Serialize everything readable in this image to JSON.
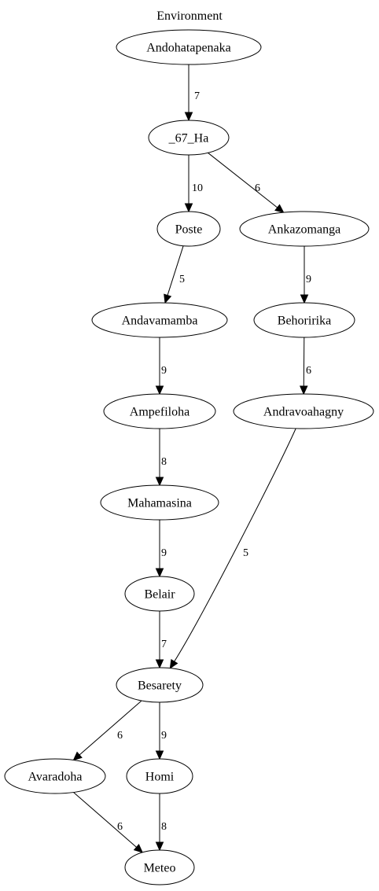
{
  "title": "Environment",
  "nodes": [
    {
      "id": "andohatapenaka",
      "label": "Andohatapenaka"
    },
    {
      "id": "67ha",
      "label": "_67_Ha"
    },
    {
      "id": "poste",
      "label": "Poste"
    },
    {
      "id": "ankazomanga",
      "label": "Ankazomanga"
    },
    {
      "id": "andavamamba",
      "label": "Andavamamba"
    },
    {
      "id": "behoririka",
      "label": "Behoririka"
    },
    {
      "id": "ampefiloha",
      "label": "Ampefiloha"
    },
    {
      "id": "andravoahagny",
      "label": "Andravoahagny"
    },
    {
      "id": "mahamasina",
      "label": "Mahamasina"
    },
    {
      "id": "belair",
      "label": "Belair"
    },
    {
      "id": "besarety",
      "label": "Besarety"
    },
    {
      "id": "avaradoha",
      "label": "Avaradoha"
    },
    {
      "id": "homi",
      "label": "Homi"
    },
    {
      "id": "meteo",
      "label": "Meteo"
    }
  ],
  "edges": [
    {
      "from": "andohatapenaka",
      "to": "67ha",
      "weight": "7"
    },
    {
      "from": "67ha",
      "to": "poste",
      "weight": "10"
    },
    {
      "from": "67ha",
      "to": "ankazomanga",
      "weight": "6"
    },
    {
      "from": "poste",
      "to": "andavamamba",
      "weight": "5"
    },
    {
      "from": "ankazomanga",
      "to": "behoririka",
      "weight": "9"
    },
    {
      "from": "andavamamba",
      "to": "ampefiloha",
      "weight": "9"
    },
    {
      "from": "behoririka",
      "to": "andravoahagny",
      "weight": "6"
    },
    {
      "from": "ampefiloha",
      "to": "mahamasina",
      "weight": "8"
    },
    {
      "from": "mahamasina",
      "to": "belair",
      "weight": "9"
    },
    {
      "from": "belair",
      "to": "besarety",
      "weight": "7"
    },
    {
      "from": "andravoahagny",
      "to": "besarety",
      "weight": "5"
    },
    {
      "from": "besarety",
      "to": "avaradoha",
      "weight": "6"
    },
    {
      "from": "besarety",
      "to": "homi",
      "weight": "9"
    },
    {
      "from": "avaradoha",
      "to": "meteo",
      "weight": "6"
    },
    {
      "from": "homi",
      "to": "meteo",
      "weight": "8"
    }
  ]
}
